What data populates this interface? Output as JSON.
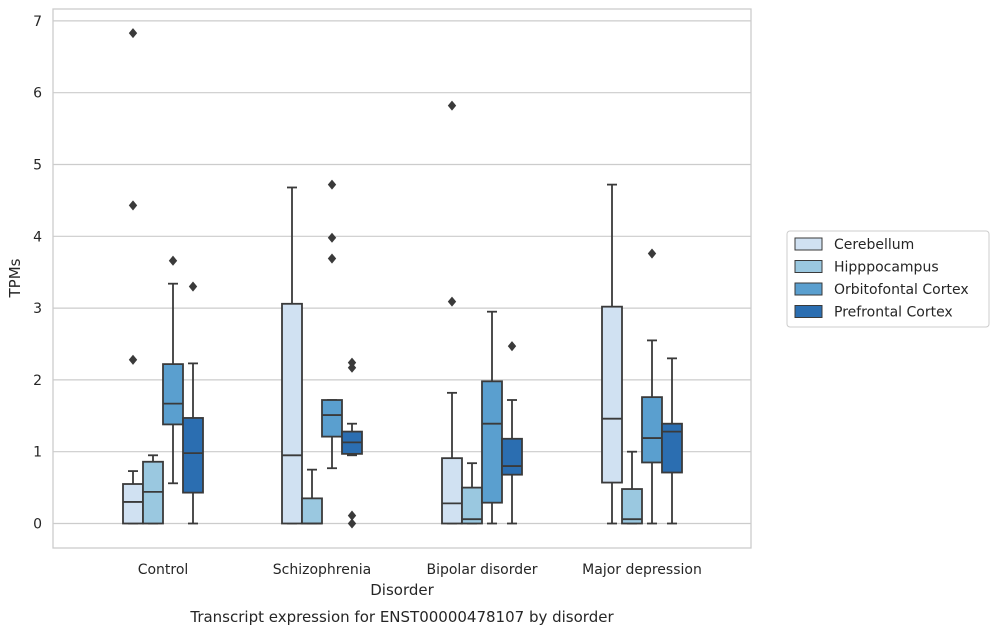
{
  "chart_data": {
    "type": "box",
    "title": "",
    "caption": "Transcript expression for ENST00000478107 by disorder",
    "xlabel": "Disorder",
    "ylabel": "TPMs",
    "ylim": [
      -0.33,
      7.2
    ],
    "yticks": [
      "0",
      "1",
      "2",
      "3",
      "4",
      "5",
      "6",
      "7"
    ],
    "grid": "horizontal",
    "legend_position": "right",
    "categories": [
      "Control",
      "Schizophrenia",
      "Bipolar disorder",
      "Major depression"
    ],
    "series": [
      {
        "name": "Cerebellum",
        "color": "#d0e1f2",
        "boxes": [
          {
            "whislo": 0,
            "q1": 0,
            "med": 0.3,
            "q3": 0.55,
            "whishi": 0.73,
            "fliers": [
              2.28,
              4.43,
              6.83
            ]
          },
          {
            "whislo": 0,
            "q1": 0,
            "med": 0.95,
            "q3": 3.06,
            "whishi": 4.68,
            "fliers": []
          },
          {
            "whislo": 0,
            "q1": 0,
            "med": 0.28,
            "q3": 0.91,
            "whishi": 1.82,
            "fliers": [
              3.09,
              5.82
            ]
          },
          {
            "whislo": 0,
            "q1": 0.57,
            "med": 1.46,
            "q3": 3.02,
            "whishi": 4.72,
            "fliers": []
          }
        ]
      },
      {
        "name": "Hipppocampus",
        "color": "#9ac8e0",
        "boxes": [
          {
            "whislo": 0,
            "q1": 0,
            "med": 0.44,
            "q3": 0.86,
            "whishi": 0.95,
            "fliers": []
          },
          {
            "whislo": 0,
            "q1": 0,
            "med": 0,
            "q3": 0.35,
            "whishi": 0.75,
            "fliers": []
          },
          {
            "whislo": 0,
            "q1": 0,
            "med": 0.06,
            "q3": 0.5,
            "whishi": 0.84,
            "fliers": []
          },
          {
            "whislo": 0,
            "q1": 0,
            "med": 0.06,
            "q3": 0.48,
            "whishi": 1.0,
            "fliers": []
          }
        ]
      },
      {
        "name": "Orbitofontal Cortex",
        "color": "#5a9fcf",
        "boxes": [
          {
            "whislo": 0.56,
            "q1": 1.38,
            "med": 1.67,
            "q3": 2.22,
            "whishi": 3.34,
            "fliers": [
              3.66
            ]
          },
          {
            "whislo": 0.77,
            "q1": 1.21,
            "med": 1.51,
            "q3": 1.72,
            "whishi": 1.72,
            "fliers": [
              3.69,
              3.98,
              4.72
            ]
          },
          {
            "whislo": 0,
            "q1": 0.29,
            "med": 1.39,
            "q3": 1.98,
            "whishi": 2.95,
            "fliers": []
          },
          {
            "whislo": 0,
            "q1": 0.85,
            "med": 1.19,
            "q3": 1.76,
            "whishi": 2.55,
            "fliers": [
              3.76
            ]
          }
        ]
      },
      {
        "name": "Prefrontal Cortex",
        "color": "#2b6eb1",
        "boxes": [
          {
            "whislo": 0,
            "q1": 0.43,
            "med": 0.98,
            "q3": 1.47,
            "whishi": 2.23,
            "fliers": [
              3.3
            ]
          },
          {
            "whislo": 0.95,
            "q1": 0.97,
            "med": 1.13,
            "q3": 1.28,
            "whishi": 1.39,
            "fliers": [
              0,
              0.11,
              2.17,
              2.24
            ]
          },
          {
            "whislo": 0,
            "q1": 0.68,
            "med": 0.8,
            "q3": 1.18,
            "whishi": 1.72,
            "fliers": [
              2.47
            ]
          },
          {
            "whislo": 0,
            "q1": 0.71,
            "med": 1.28,
            "q3": 1.39,
            "whishi": 2.3,
            "fliers": []
          }
        ]
      }
    ]
  }
}
